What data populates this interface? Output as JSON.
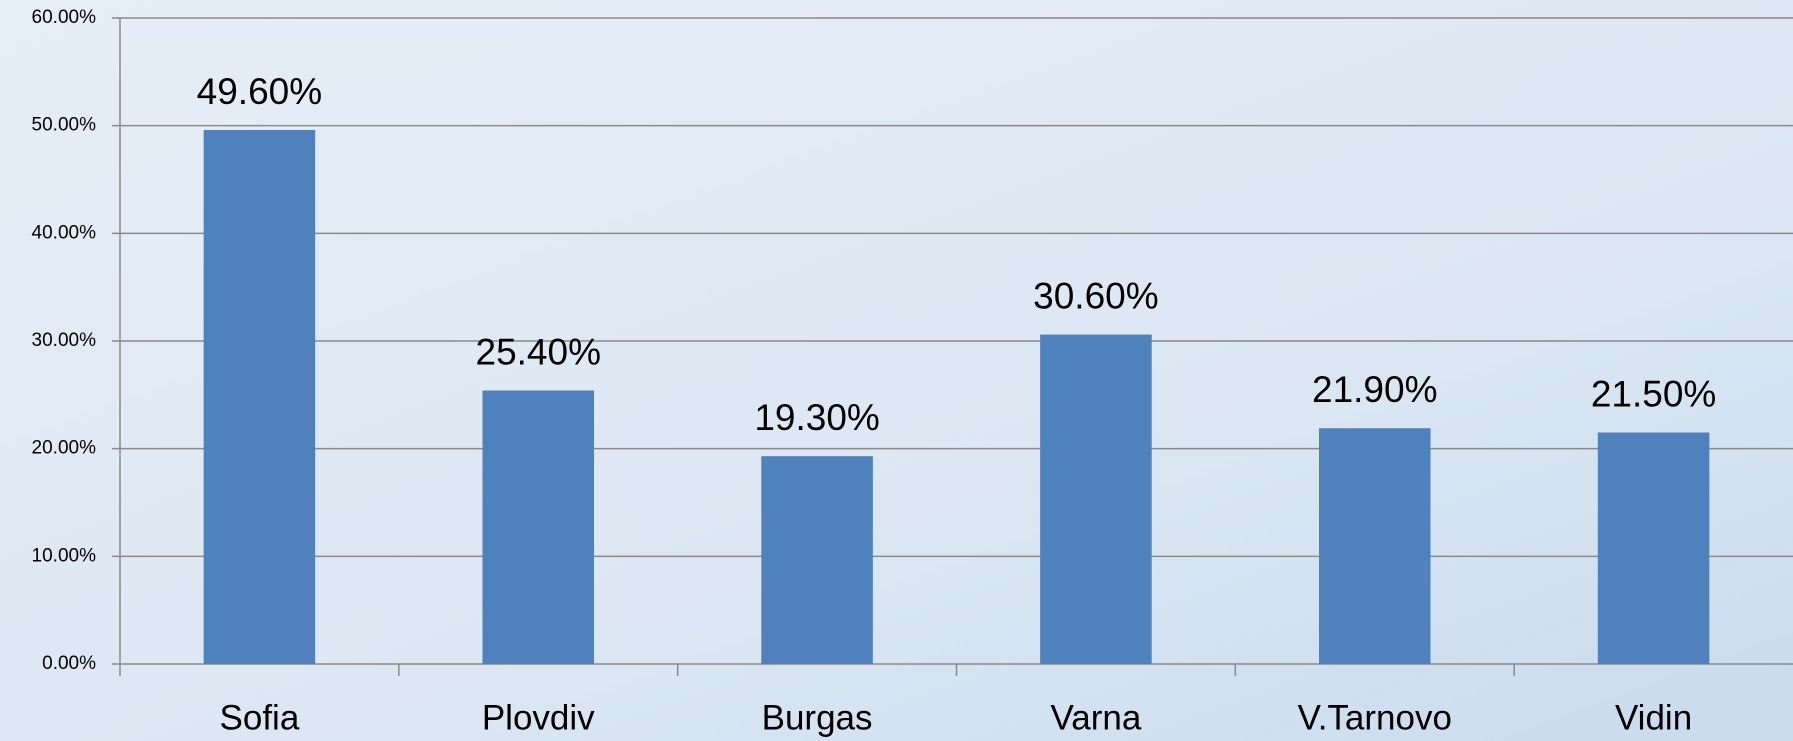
{
  "chart_data": {
    "type": "bar",
    "categories": [
      "Sofia",
      "Plovdiv",
      "Burgas",
      "Varna",
      "V.Tarnovo",
      "Vidin"
    ],
    "values": [
      49.6,
      25.4,
      19.3,
      30.6,
      21.9,
      21.5
    ],
    "value_labels": [
      "49.60%",
      "25.40%",
      "19.30%",
      "30.60%",
      "21.90%",
      "21.50%"
    ],
    "color": "#4f81bd",
    "ylim": [
      0,
      60
    ],
    "yticks": [
      {
        "value": 0,
        "label": "0.00%"
      },
      {
        "value": 10,
        "label": "10.00%"
      },
      {
        "value": 20,
        "label": "20.00%"
      },
      {
        "value": 30,
        "label": "30.00%"
      },
      {
        "value": 40,
        "label": "40.00%"
      },
      {
        "value": 50,
        "label": "50.00%"
      },
      {
        "value": 60,
        "label": "60.00%"
      }
    ],
    "grid": true
  }
}
